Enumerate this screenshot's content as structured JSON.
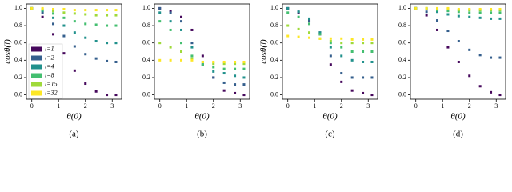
{
  "chart_data": [
    {
      "type": "scatter",
      "caption": "(a)",
      "xlabel": "θ(0)",
      "ylabel": "cosθ(l)",
      "legend": "lower left",
      "x": [
        0,
        0.4,
        0.8,
        1.2,
        1.6,
        2.0,
        2.4,
        2.8,
        3.14
      ],
      "xlim": [
        -0.2,
        3.35
      ],
      "ylim": [
        -0.05,
        1.05
      ],
      "xticks": [
        0,
        1,
        2,
        3
      ],
      "yticks": [
        {
          "value": 0,
          "label": "0.0"
        },
        {
          "value": 0.2,
          "label": "0.2"
        },
        {
          "value": 0.4,
          "label": "0.4"
        },
        {
          "value": 0.6,
          "label": "0.6"
        },
        {
          "value": 0.8,
          "label": "0.8"
        },
        {
          "value": 1,
          "label": "1.0"
        }
      ],
      "series": [
        {
          "name": "l=1",
          "color": "#46085c",
          "values": [
            1,
            0.9,
            0.7,
            0.48,
            0.28,
            0.13,
            0.04,
            0.0,
            0.0
          ]
        },
        {
          "name": "l=2",
          "color": "#355f8d",
          "values": [
            1,
            0.95,
            0.82,
            0.68,
            0.56,
            0.47,
            0.42,
            0.39,
            0.38
          ]
        },
        {
          "name": "l=4",
          "color": "#21918c",
          "values": [
            1,
            0.97,
            0.89,
            0.8,
            0.72,
            0.66,
            0.62,
            0.6,
            0.6
          ]
        },
        {
          "name": "l=8",
          "color": "#44bf70",
          "values": [
            1,
            0.98,
            0.94,
            0.89,
            0.85,
            0.82,
            0.81,
            0.8,
            0.8
          ]
        },
        {
          "name": "l=15",
          "color": "#9fda3a",
          "values": [
            1,
            0.99,
            0.97,
            0.95,
            0.94,
            0.93,
            0.92,
            0.92,
            0.92
          ]
        },
        {
          "name": "l=32",
          "color": "#fde725",
          "values": [
            1,
            1,
            0.99,
            0.99,
            0.98,
            0.98,
            0.98,
            0.98,
            0.98
          ]
        }
      ]
    },
    {
      "type": "scatter",
      "caption": "(b)",
      "xlabel": "θ(0)",
      "x": [
        0,
        0.4,
        0.8,
        1.2,
        1.6,
        2.0,
        2.4,
        2.8,
        3.14
      ],
      "xlim": [
        -0.2,
        3.35
      ],
      "ylim": [
        -0.05,
        1.05
      ],
      "xticks": [
        0,
        1,
        2,
        3
      ],
      "yticks": [
        {
          "value": 0,
          "label": "0.0"
        },
        {
          "value": 0.2,
          "label": "0.2"
        },
        {
          "value": 0.4,
          "label": "0.4"
        },
        {
          "value": 0.6,
          "label": "0.6"
        },
        {
          "value": 0.8,
          "label": "0.8"
        },
        {
          "value": 1,
          "label": "1.0"
        }
      ],
      "series": [
        {
          "color": "#46085c",
          "values": [
            1,
            0.97,
            0.9,
            0.75,
            0.45,
            0.2,
            0.05,
            0.02,
            0.0
          ]
        },
        {
          "color": "#355f8d",
          "values": [
            1,
            0.95,
            0.85,
            0.6,
            0.35,
            0.2,
            0.14,
            0.12,
            0.12
          ]
        },
        {
          "color": "#21918c",
          "values": [
            0.95,
            0.85,
            0.75,
            0.55,
            0.35,
            0.27,
            0.25,
            0.22,
            0.2
          ]
        },
        {
          "color": "#44bf70",
          "values": [
            0.85,
            0.75,
            0.6,
            0.45,
            0.35,
            0.32,
            0.3,
            0.3,
            0.3
          ]
        },
        {
          "color": "#9fda3a",
          "values": [
            0.6,
            0.55,
            0.5,
            0.42,
            0.38,
            0.36,
            0.36,
            0.36,
            0.36
          ]
        },
        {
          "color": "#fde725",
          "values": [
            0.4,
            0.4,
            0.4,
            0.4,
            0.38,
            0.38,
            0.38,
            0.38,
            0.38
          ]
        }
      ]
    },
    {
      "type": "scatter",
      "caption": "(c)",
      "xlabel": "θ(0)",
      "ylabel": "cosθ(l)",
      "x": [
        0,
        0.4,
        0.8,
        1.2,
        1.6,
        2.0,
        2.4,
        2.8,
        3.14
      ],
      "xlim": [
        -0.2,
        3.35
      ],
      "ylim": [
        -0.05,
        1.05
      ],
      "xticks": [
        0,
        1,
        2,
        3
      ],
      "yticks": [
        {
          "value": 0,
          "label": "0.0"
        },
        {
          "value": 0.2,
          "label": "0.2"
        },
        {
          "value": 0.4,
          "label": "0.4"
        },
        {
          "value": 0.6,
          "label": "0.6"
        },
        {
          "value": 0.8,
          "label": "0.8"
        },
        {
          "value": 1,
          "label": "1.0"
        }
      ],
      "series": [
        {
          "color": "#46085c",
          "values": [
            1,
            0.95,
            0.85,
            0.7,
            0.35,
            0.15,
            0.05,
            0.02,
            0.0
          ]
        },
        {
          "color": "#355f8d",
          "values": [
            1,
            0.96,
            0.86,
            0.72,
            0.45,
            0.25,
            0.2,
            0.2,
            0.2
          ]
        },
        {
          "color": "#21918c",
          "values": [
            1,
            0.96,
            0.88,
            0.72,
            0.55,
            0.45,
            0.4,
            0.38,
            0.38
          ]
        },
        {
          "color": "#44bf70",
          "values": [
            0.95,
            0.9,
            0.82,
            0.7,
            0.6,
            0.55,
            0.5,
            0.5,
            0.5
          ]
        },
        {
          "color": "#9fda3a",
          "values": [
            0.8,
            0.76,
            0.72,
            0.65,
            0.62,
            0.6,
            0.6,
            0.6,
            0.6
          ]
        },
        {
          "color": "#fde725",
          "values": [
            0.68,
            0.67,
            0.66,
            0.65,
            0.65,
            0.65,
            0.64,
            0.64,
            0.64
          ]
        }
      ]
    },
    {
      "type": "scatter",
      "caption": "(d)",
      "xlabel": "θ(0)",
      "x": [
        0,
        0.4,
        0.8,
        1.2,
        1.6,
        2.0,
        2.4,
        2.8,
        3.14
      ],
      "xlim": [
        -0.2,
        3.35
      ],
      "ylim": [
        -0.05,
        1.05
      ],
      "xticks": [
        0,
        1,
        2,
        3
      ],
      "yticks": [
        {
          "value": 0,
          "label": "0.0"
        },
        {
          "value": 0.2,
          "label": "0.2"
        },
        {
          "value": 0.4,
          "label": "0.4"
        },
        {
          "value": 0.6,
          "label": "0.6"
        },
        {
          "value": 0.8,
          "label": "0.8"
        },
        {
          "value": 1,
          "label": "1.0"
        }
      ],
      "series": [
        {
          "color": "#46085c",
          "values": [
            1,
            0.92,
            0.75,
            0.55,
            0.38,
            0.22,
            0.1,
            0.03,
            0.0
          ]
        },
        {
          "color": "#355f8d",
          "values": [
            1,
            0.96,
            0.86,
            0.74,
            0.62,
            0.52,
            0.46,
            0.43,
            0.43
          ]
        },
        {
          "color": "#21918c",
          "values": [
            1,
            0.99,
            0.96,
            0.93,
            0.91,
            0.9,
            0.89,
            0.88,
            0.88
          ]
        },
        {
          "color": "#44bf70",
          "values": [
            1,
            1,
            0.98,
            0.97,
            0.96,
            0.95,
            0.95,
            0.95,
            0.95
          ]
        },
        {
          "color": "#9fda3a",
          "values": [
            1,
            1,
            0.99,
            0.99,
            0.98,
            0.98,
            0.98,
            0.98,
            0.98
          ]
        },
        {
          "color": "#fde725",
          "values": [
            1,
            1,
            1,
            1,
            0.99,
            0.99,
            0.99,
            0.99,
            0.99
          ]
        }
      ]
    }
  ]
}
